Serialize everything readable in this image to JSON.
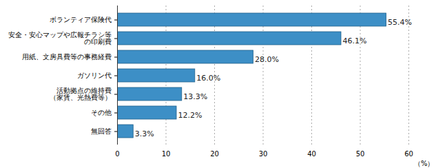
{
  "chart_data": {
    "type": "bar",
    "orientation": "horizontal",
    "categories": [
      "ボランティア保険代",
      "安全・安心マップや広報チラシ等\nの印刷費",
      "用紙、文房具費等の事務経費",
      "ガソリン代",
      "活動拠点の維持費\n（家賃、光熱費等）",
      "その他",
      "無回答"
    ],
    "values": [
      55.4,
      46.1,
      28.0,
      16.0,
      13.3,
      12.2,
      3.3
    ],
    "value_labels": [
      "55.4%",
      "46.1%",
      "28.0%",
      "16.0%",
      "13.3%",
      "12.2%",
      "3.3%"
    ],
    "data_labels": true,
    "color": "#3d8fc6",
    "x_label": "（%）",
    "xlim": [
      0,
      60
    ],
    "xticks": [
      0,
      10,
      20,
      30,
      40,
      50,
      60
    ],
    "grid": true
  }
}
